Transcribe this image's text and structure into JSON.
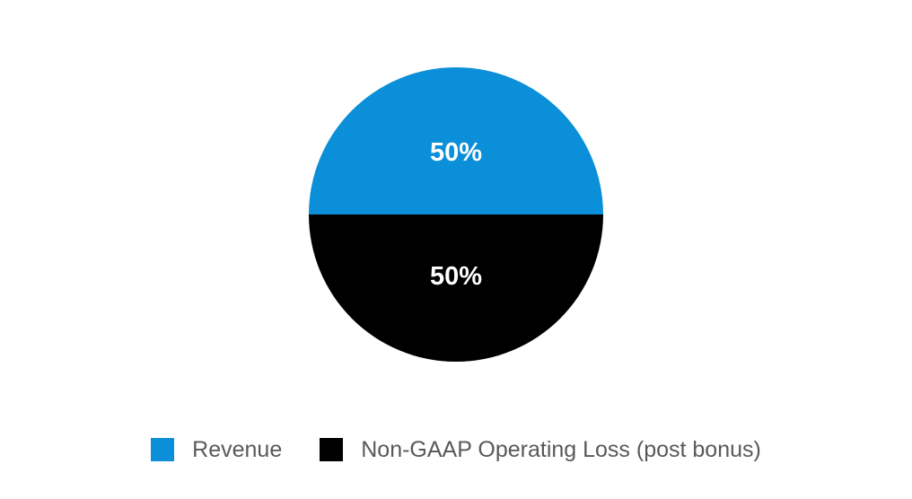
{
  "chart_data": {
    "type": "pie",
    "title": "",
    "categories": [
      "Revenue",
      "Non-GAAP Operating Loss (post bonus)"
    ],
    "values": [
      50,
      50
    ],
    "value_unit": "%",
    "data_labels": [
      "50%",
      "50%"
    ],
    "colors": [
      "#0a8fd8",
      "#000000"
    ],
    "start_angle_deg": 180,
    "direction": "clockwise",
    "legend_position": "bottom"
  },
  "legend": {
    "items": [
      {
        "label": "Revenue",
        "color": "#0a8fd8"
      },
      {
        "label": "Non-GAAP Operating Loss (post bonus)",
        "color": "#000000"
      }
    ]
  }
}
